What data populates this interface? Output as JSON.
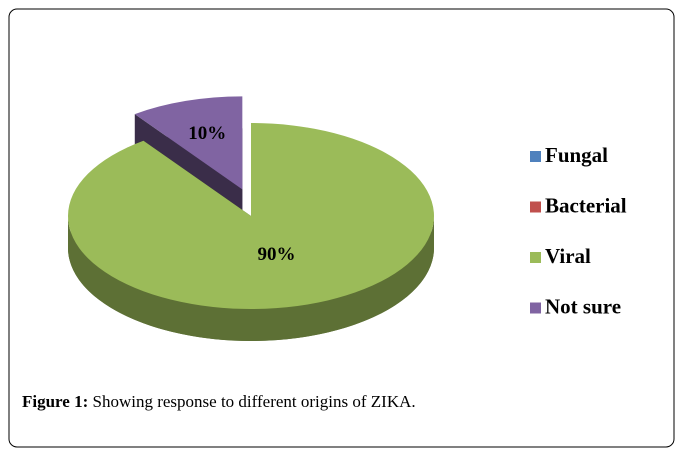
{
  "chart_data": {
    "type": "pie",
    "categories": [
      "Fungal",
      "Bacterial",
      "Viral",
      "Not sure"
    ],
    "values": [
      0,
      0,
      90,
      10
    ],
    "value_labels": [
      null,
      null,
      "90%",
      "10%"
    ],
    "colors": [
      "#4f81bd",
      "#c0504d",
      "#9bbb59",
      "#8064a2"
    ],
    "legend": "right"
  },
  "caption": {
    "label": "Figure 1:",
    "text": "Showing response to different origins of ZIKA."
  }
}
